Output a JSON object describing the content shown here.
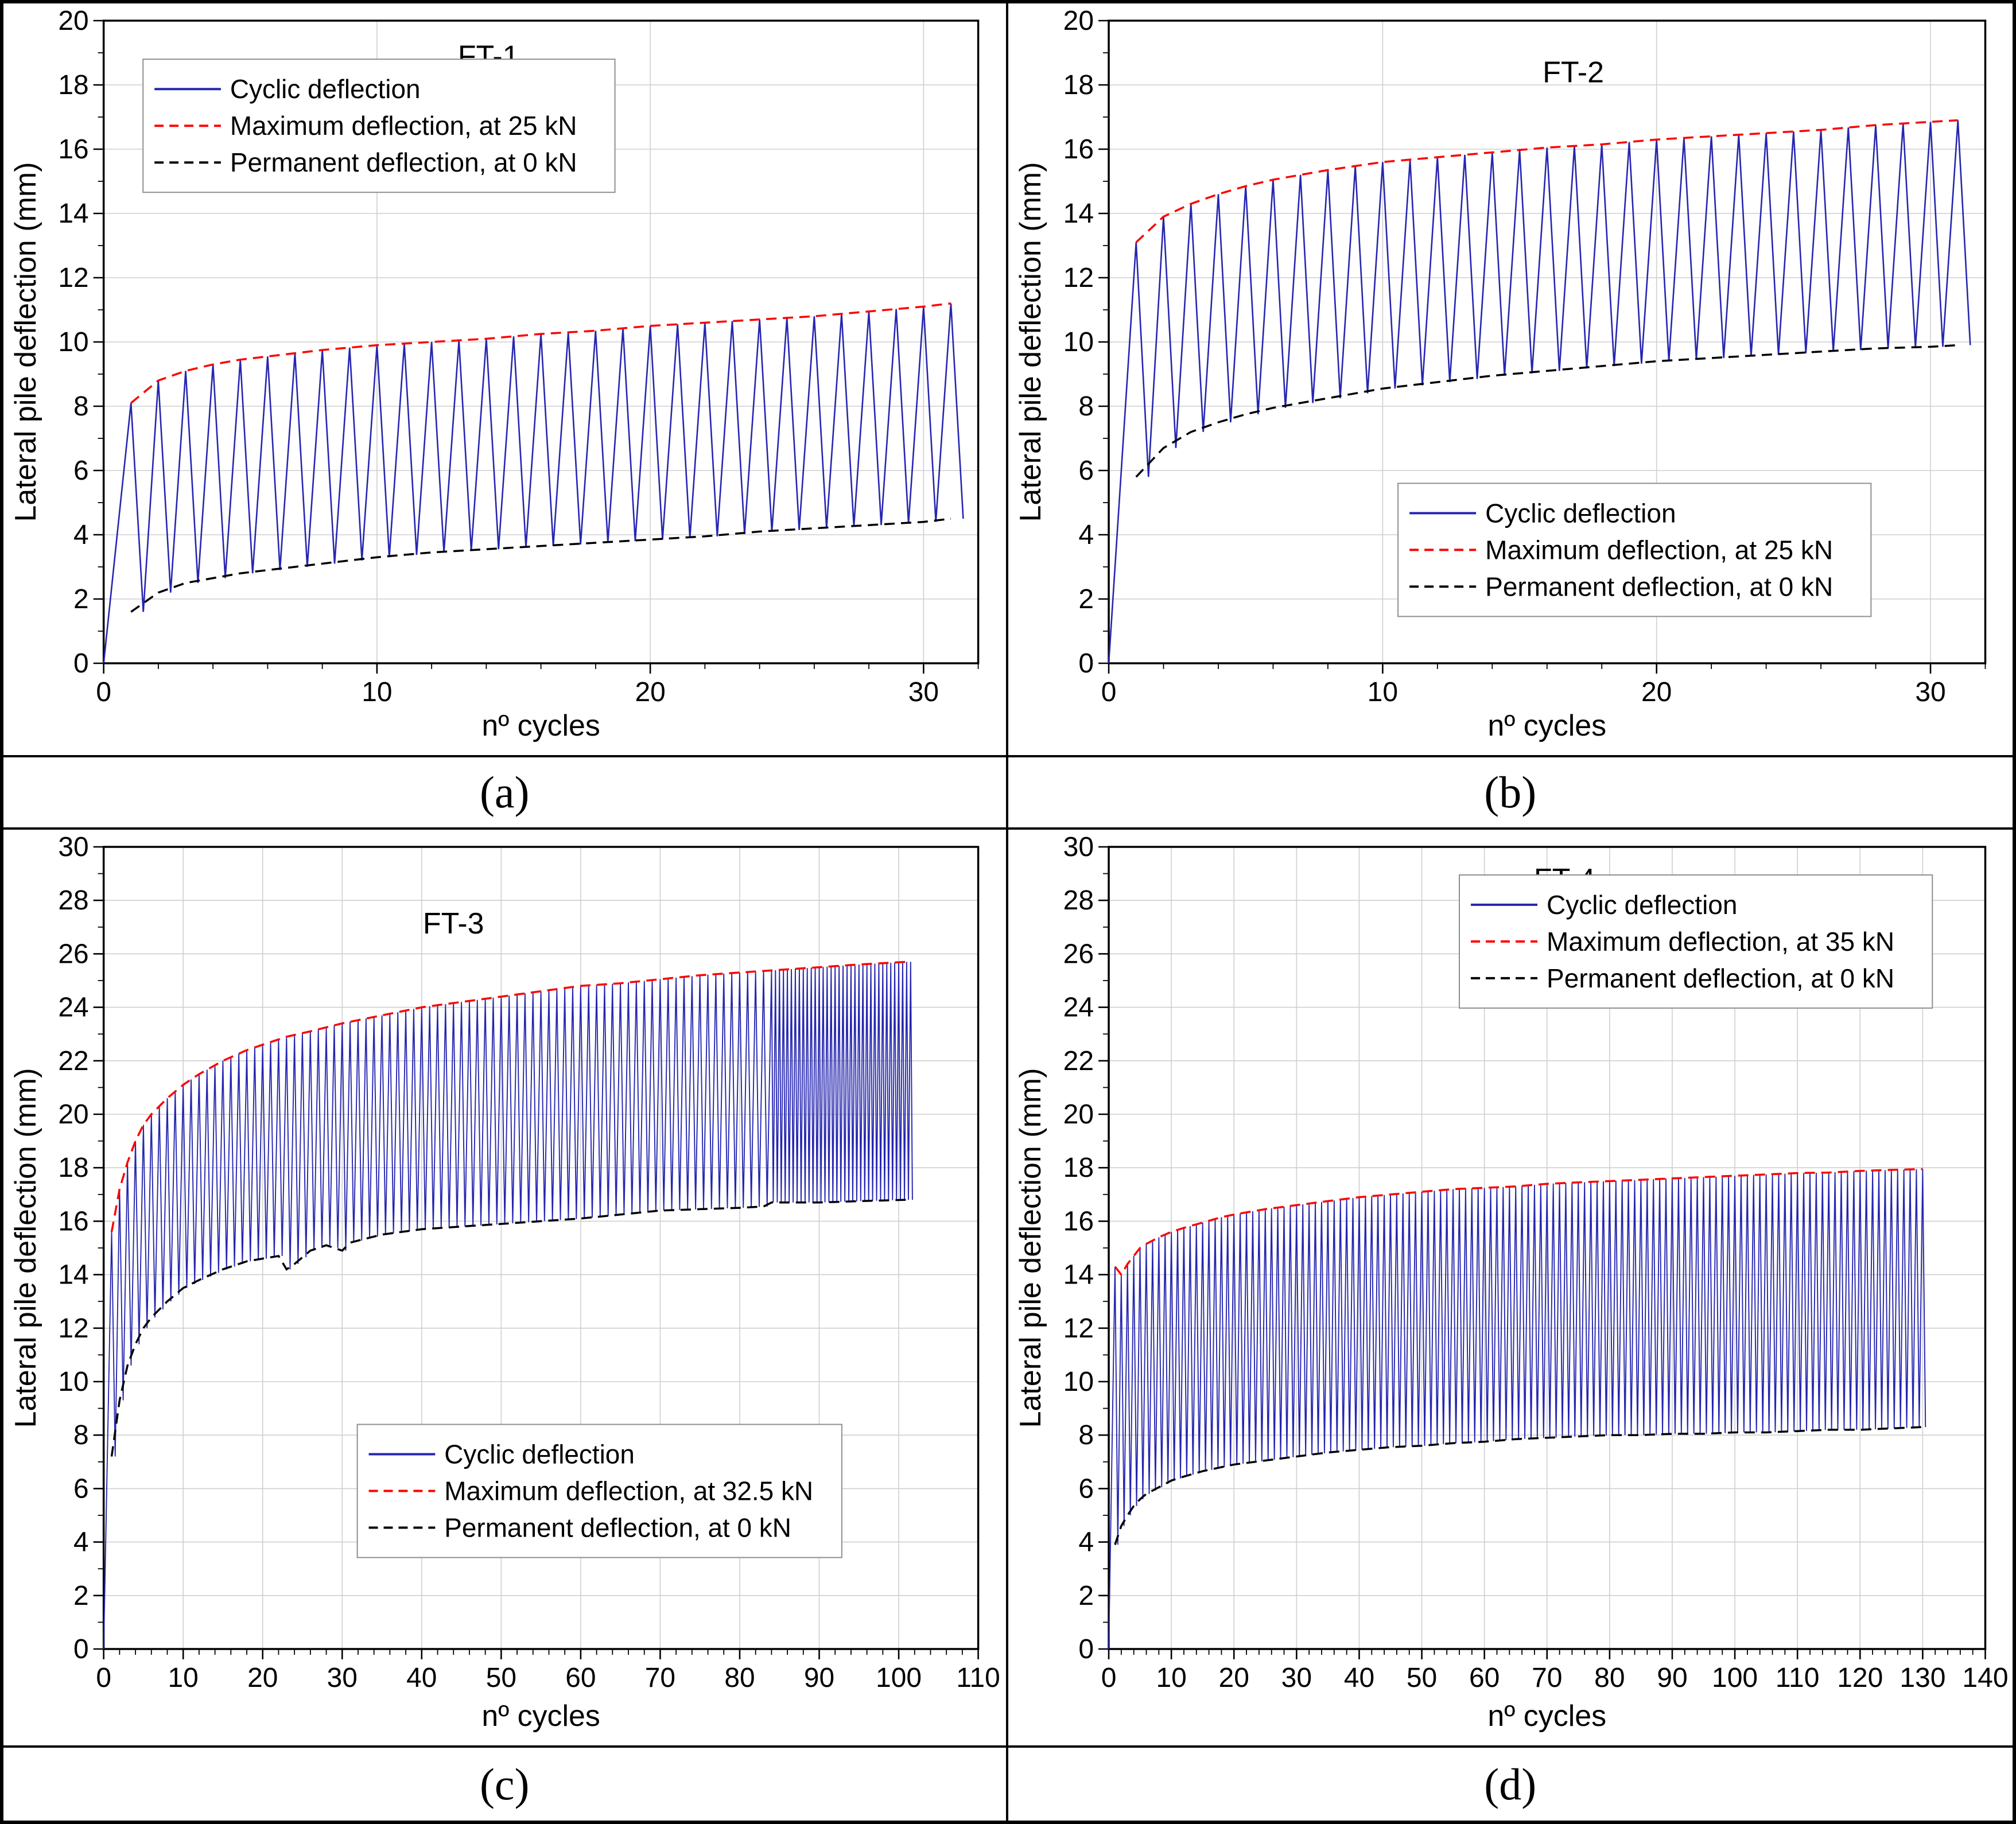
{
  "captions": [
    "(a)",
    "(b)",
    "(c)",
    "(d)"
  ],
  "colors": {
    "cyclic": "#2626b0",
    "maximum": "#ff0000",
    "permanent": "#000000",
    "grid": "#cfcfcf",
    "frame": "#000000",
    "legend_border": "#8f8f8f"
  },
  "chart_data": [
    {
      "id": "a",
      "type": "line",
      "title": "FT-1",
      "title_pos": [
        0.44,
        0.03
      ],
      "xlabel": "nº cycles",
      "ylabel": "Lateral pile deflection (mm)",
      "xlim": [
        0,
        32
      ],
      "ylim": [
        0,
        20
      ],
      "xtick": 10,
      "xminor": 2,
      "ytick": 2,
      "yminor": 1,
      "cycles": 31,
      "dense_from": null,
      "max_env": [
        [
          1,
          8.1
        ],
        [
          2,
          8.8
        ],
        [
          3,
          9.1
        ],
        [
          4,
          9.3
        ],
        [
          5,
          9.45
        ],
        [
          6,
          9.55
        ],
        [
          7,
          9.65
        ],
        [
          8,
          9.75
        ],
        [
          10,
          9.9
        ],
        [
          12,
          10.0
        ],
        [
          14,
          10.1
        ],
        [
          16,
          10.25
        ],
        [
          18,
          10.35
        ],
        [
          20,
          10.5
        ],
        [
          22,
          10.6
        ],
        [
          24,
          10.7
        ],
        [
          26,
          10.8
        ],
        [
          28,
          10.95
        ],
        [
          30,
          11.1
        ],
        [
          31,
          11.2
        ]
      ],
      "perm_env": [
        [
          1,
          1.6
        ],
        [
          2,
          2.2
        ],
        [
          3,
          2.5
        ],
        [
          4,
          2.65
        ],
        [
          5,
          2.8
        ],
        [
          6,
          2.9
        ],
        [
          7,
          3.0
        ],
        [
          8,
          3.1
        ],
        [
          10,
          3.3
        ],
        [
          12,
          3.45
        ],
        [
          14,
          3.55
        ],
        [
          16,
          3.65
        ],
        [
          18,
          3.75
        ],
        [
          20,
          3.85
        ],
        [
          22,
          3.95
        ],
        [
          24,
          4.1
        ],
        [
          26,
          4.2
        ],
        [
          28,
          4.3
        ],
        [
          30,
          4.4
        ],
        [
          31,
          4.5
        ]
      ],
      "legend": {
        "anchor": [
          0.045,
          0.06
        ],
        "items": [
          {
            "label": "Cyclic deflection",
            "color": "#2626b0",
            "dash": "solid"
          },
          {
            "label": "Maximum deflection, at 25 kN",
            "color": "#ff0000",
            "dash": "dashed"
          },
          {
            "label": "Permanent deflection, at 0 kN",
            "color": "#000000",
            "dash": "dashed"
          }
        ]
      }
    },
    {
      "id": "b",
      "type": "line",
      "title": "FT-2",
      "title_pos": [
        0.53,
        0.055
      ],
      "xlabel": "nº cycles",
      "ylabel": "Lateral pile deflection (mm)",
      "xlim": [
        0,
        32
      ],
      "ylim": [
        0,
        20
      ],
      "xtick": 10,
      "xminor": 2,
      "ytick": 2,
      "yminor": 1,
      "cycles": 31,
      "dense_from": null,
      "max_env": [
        [
          1,
          13.1
        ],
        [
          2,
          13.9
        ],
        [
          3,
          14.3
        ],
        [
          4,
          14.6
        ],
        [
          5,
          14.85
        ],
        [
          6,
          15.05
        ],
        [
          7,
          15.2
        ],
        [
          8,
          15.35
        ],
        [
          10,
          15.6
        ],
        [
          12,
          15.75
        ],
        [
          14,
          15.9
        ],
        [
          16,
          16.05
        ],
        [
          18,
          16.15
        ],
        [
          20,
          16.3
        ],
        [
          22,
          16.4
        ],
        [
          24,
          16.5
        ],
        [
          26,
          16.6
        ],
        [
          28,
          16.75
        ],
        [
          30,
          16.85
        ],
        [
          31,
          16.9
        ]
      ],
      "perm_env": [
        [
          1,
          5.8
        ],
        [
          2,
          6.7
        ],
        [
          3,
          7.2
        ],
        [
          4,
          7.5
        ],
        [
          5,
          7.75
        ],
        [
          6,
          7.95
        ],
        [
          7,
          8.1
        ],
        [
          8,
          8.25
        ],
        [
          10,
          8.55
        ],
        [
          12,
          8.75
        ],
        [
          14,
          8.95
        ],
        [
          16,
          9.1
        ],
        [
          18,
          9.25
        ],
        [
          20,
          9.4
        ],
        [
          22,
          9.5
        ],
        [
          24,
          9.6
        ],
        [
          26,
          9.7
        ],
        [
          28,
          9.8
        ],
        [
          30,
          9.85
        ],
        [
          31,
          9.9
        ]
      ],
      "legend": {
        "anchor": [
          0.33,
          0.72
        ],
        "items": [
          {
            "label": "Cyclic deflection",
            "color": "#2626b0",
            "dash": "solid"
          },
          {
            "label": "Maximum deflection, at 25 kN",
            "color": "#ff0000",
            "dash": "dashed"
          },
          {
            "label": "Permanent deflection, at 0 kN",
            "color": "#000000",
            "dash": "dashed"
          }
        ]
      }
    },
    {
      "id": "c",
      "type": "line",
      "title": "FT-3",
      "title_pos": [
        0.4,
        0.075
      ],
      "xlabel": "nº cycles",
      "ylabel": "Lateral pile deflection (mm)",
      "xlim": [
        0,
        110
      ],
      "ylim": [
        0,
        30
      ],
      "xtick": 10,
      "xminor": 2,
      "ytick": 2,
      "yminor": 1,
      "cycles": 101,
      "dense_from": 84,
      "max_env": [
        [
          1,
          15.6
        ],
        [
          2,
          17.2
        ],
        [
          3,
          18.2
        ],
        [
          4,
          19.0
        ],
        [
          5,
          19.6
        ],
        [
          6,
          20.0
        ],
        [
          7,
          20.3
        ],
        [
          8,
          20.6
        ],
        [
          10,
          21.1
        ],
        [
          12,
          21.5
        ],
        [
          15,
          22.0
        ],
        [
          18,
          22.4
        ],
        [
          20,
          22.6
        ],
        [
          23,
          22.9
        ],
        [
          26,
          23.1
        ],
        [
          30,
          23.4
        ],
        [
          35,
          23.7
        ],
        [
          40,
          24.0
        ],
        [
          45,
          24.2
        ],
        [
          50,
          24.4
        ],
        [
          55,
          24.6
        ],
        [
          60,
          24.8
        ],
        [
          65,
          24.9
        ],
        [
          70,
          25.05
        ],
        [
          75,
          25.2
        ],
        [
          80,
          25.3
        ],
        [
          85,
          25.4
        ],
        [
          90,
          25.5
        ],
        [
          95,
          25.6
        ],
        [
          101,
          25.7
        ]
      ],
      "perm_env": [
        [
          1,
          7.2
        ],
        [
          2,
          9.3
        ],
        [
          3,
          10.6
        ],
        [
          4,
          11.4
        ],
        [
          5,
          12.0
        ],
        [
          6,
          12.4
        ],
        [
          7,
          12.7
        ],
        [
          8,
          13.0
        ],
        [
          10,
          13.5
        ],
        [
          12,
          13.8
        ],
        [
          15,
          14.2
        ],
        [
          18,
          14.5
        ],
        [
          20,
          14.6
        ],
        [
          22,
          14.7
        ],
        [
          23,
          14.2
        ],
        [
          24,
          14.4
        ],
        [
          26,
          14.9
        ],
        [
          28,
          15.1
        ],
        [
          30,
          14.9
        ],
        [
          31,
          15.2
        ],
        [
          35,
          15.5
        ],
        [
          40,
          15.7
        ],
        [
          45,
          15.8
        ],
        [
          50,
          15.9
        ],
        [
          55,
          16.0
        ],
        [
          60,
          16.1
        ],
        [
          65,
          16.25
        ],
        [
          70,
          16.4
        ],
        [
          75,
          16.45
        ],
        [
          80,
          16.5
        ],
        [
          83,
          16.55
        ],
        [
          84,
          16.7
        ],
        [
          90,
          16.7
        ],
        [
          95,
          16.75
        ],
        [
          101,
          16.8
        ]
      ],
      "legend": {
        "anchor": [
          0.29,
          0.72
        ],
        "items": [
          {
            "label": "Cyclic deflection",
            "color": "#2626b0",
            "dash": "solid"
          },
          {
            "label": "Maximum deflection, at 32.5 kN",
            "color": "#ff0000",
            "dash": "dashed"
          },
          {
            "label": "Permanent deflection, at 0 kN",
            "color": "#000000",
            "dash": "dashed"
          }
        ]
      }
    },
    {
      "id": "d",
      "type": "line",
      "title": "FT-4",
      "title_pos": [
        0.52,
        0.02
      ],
      "xlabel": "nº cycles",
      "ylabel": "Lateral pile deflection (mm)",
      "xlim": [
        0,
        140
      ],
      "ylim": [
        0,
        30
      ],
      "xtick": 10,
      "xminor": 2,
      "ytick": 2,
      "yminor": 1,
      "cycles": 130,
      "dense_from": null,
      "max_env": [
        [
          1,
          14.3
        ],
        [
          2,
          14.0
        ],
        [
          3,
          14.4
        ],
        [
          4,
          14.7
        ],
        [
          5,
          15.0
        ],
        [
          6,
          15.15
        ],
        [
          8,
          15.4
        ],
        [
          10,
          15.6
        ],
        [
          12,
          15.75
        ],
        [
          15,
          15.95
        ],
        [
          18,
          16.15
        ],
        [
          20,
          16.25
        ],
        [
          25,
          16.45
        ],
        [
          30,
          16.6
        ],
        [
          35,
          16.75
        ],
        [
          40,
          16.9
        ],
        [
          45,
          17.0
        ],
        [
          50,
          17.1
        ],
        [
          55,
          17.2
        ],
        [
          60,
          17.25
        ],
        [
          65,
          17.3
        ],
        [
          70,
          17.4
        ],
        [
          75,
          17.45
        ],
        [
          80,
          17.5
        ],
        [
          85,
          17.55
        ],
        [
          90,
          17.6
        ],
        [
          95,
          17.65
        ],
        [
          100,
          17.7
        ],
        [
          105,
          17.75
        ],
        [
          110,
          17.8
        ],
        [
          115,
          17.82
        ],
        [
          120,
          17.88
        ],
        [
          125,
          17.92
        ],
        [
          130,
          17.95
        ]
      ],
      "perm_env": [
        [
          1,
          3.9
        ],
        [
          2,
          4.6
        ],
        [
          3,
          5.0
        ],
        [
          4,
          5.35
        ],
        [
          5,
          5.6
        ],
        [
          6,
          5.8
        ],
        [
          8,
          6.05
        ],
        [
          10,
          6.3
        ],
        [
          12,
          6.45
        ],
        [
          15,
          6.65
        ],
        [
          18,
          6.8
        ],
        [
          20,
          6.9
        ],
        [
          25,
          7.05
        ],
        [
          30,
          7.2
        ],
        [
          35,
          7.35
        ],
        [
          40,
          7.45
        ],
        [
          45,
          7.55
        ],
        [
          50,
          7.6
        ],
        [
          55,
          7.7
        ],
        [
          60,
          7.75
        ],
        [
          65,
          7.85
        ],
        [
          70,
          7.9
        ],
        [
          75,
          7.95
        ],
        [
          80,
          8.0
        ],
        [
          85,
          8.0
        ],
        [
          90,
          8.05
        ],
        [
          95,
          8.05
        ],
        [
          100,
          8.1
        ],
        [
          105,
          8.1
        ],
        [
          110,
          8.15
        ],
        [
          115,
          8.2
        ],
        [
          120,
          8.2
        ],
        [
          125,
          8.25
        ],
        [
          130,
          8.3
        ]
      ],
      "legend": {
        "anchor": [
          0.4,
          0.035
        ],
        "items": [
          {
            "label": "Cyclic deflection",
            "color": "#2626b0",
            "dash": "solid"
          },
          {
            "label": "Maximum deflection, at 35 kN",
            "color": "#ff0000",
            "dash": "dashed"
          },
          {
            "label": "Permanent deflection, at 0 kN",
            "color": "#000000",
            "dash": "dashed"
          }
        ]
      }
    }
  ]
}
